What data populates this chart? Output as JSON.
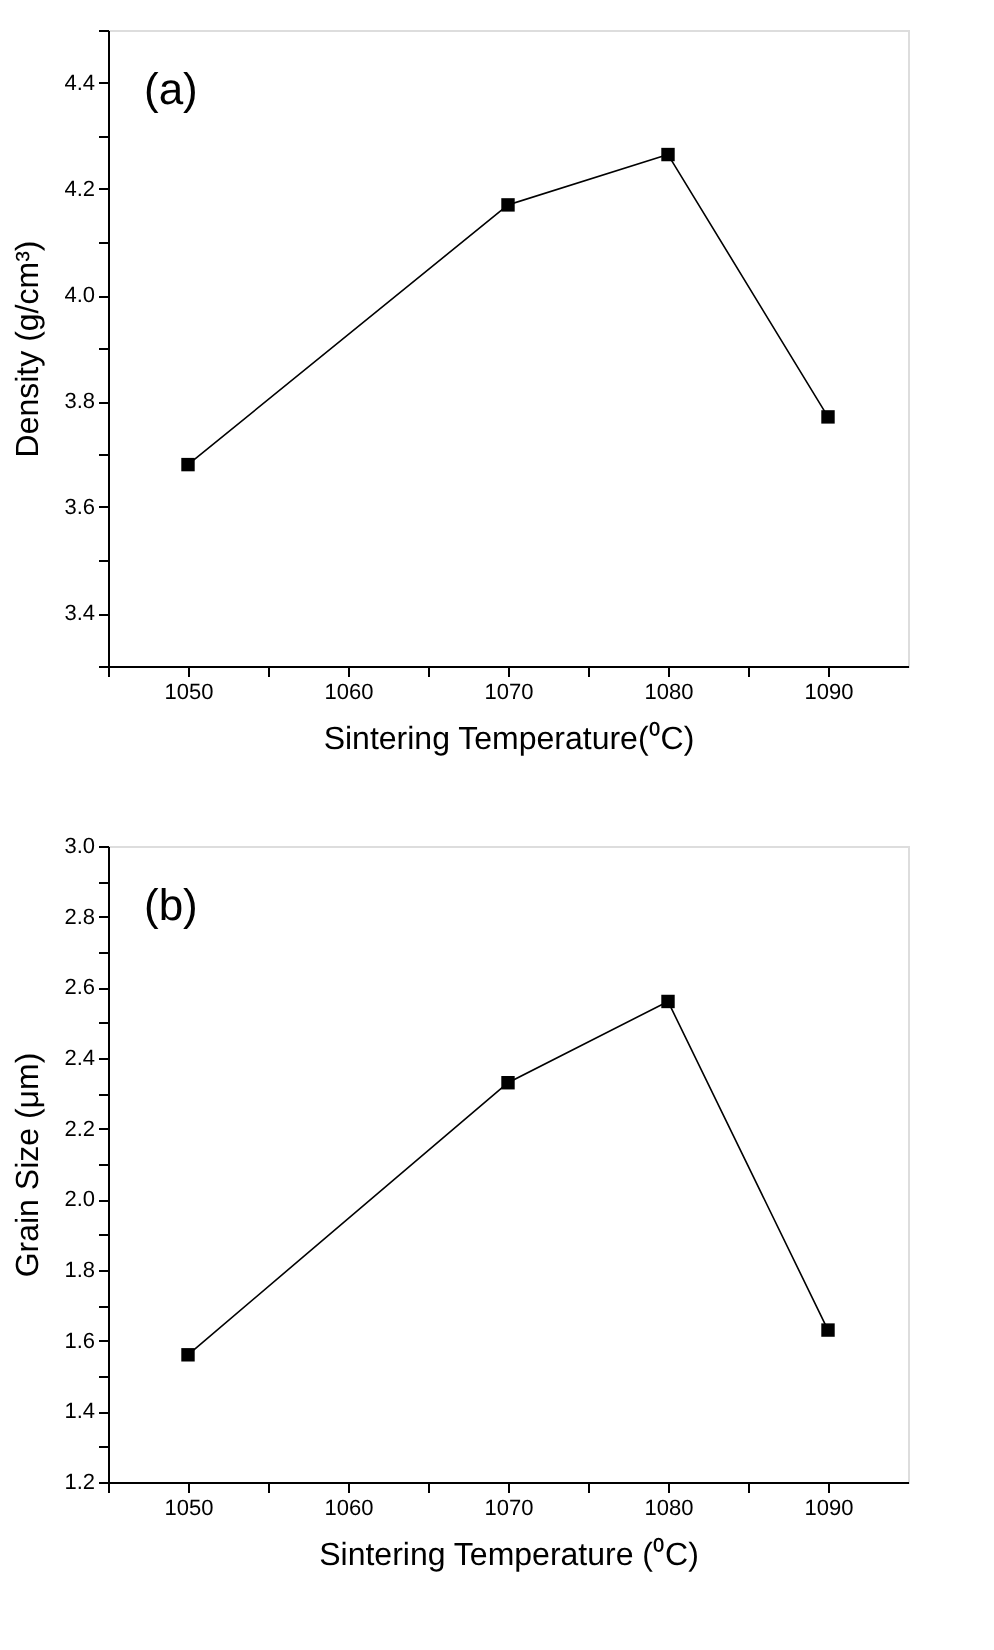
{
  "chart_data": [
    {
      "type": "line",
      "xlabel": "Sintering Temperature(⁰C)",
      "ylabel": "Density (g/cm³)",
      "annotations": [
        "(a)"
      ],
      "x": [
        1050,
        1070,
        1080,
        1090
      ],
      "series": [
        {
          "color": "#000000",
          "values": [
            3.68,
            4.17,
            4.265,
            3.77
          ]
        }
      ],
      "xlim": [
        1045,
        1095
      ],
      "xticks": [
        {
          "value": 1045,
          "label": null
        },
        1050,
        {
          "value": 1055,
          "label": null
        },
        1060,
        {
          "value": 1065,
          "label": null
        },
        1070,
        {
          "value": 1075,
          "label": null
        },
        1080,
        {
          "value": 1085,
          "label": null
        },
        1090
      ],
      "ylim": [
        3.3,
        4.5
      ],
      "yticks": [
        {
          "value": 3.3,
          "label": null
        },
        3.4,
        {
          "value": 3.5,
          "label": null
        },
        3.6,
        {
          "value": 3.7,
          "label": null
        },
        3.8,
        {
          "value": 3.9,
          "label": null
        },
        {
          "value": 4.0,
          "label": "4.0"
        },
        {
          "value": 4.1,
          "label": null
        },
        4.2,
        {
          "value": 4.3,
          "label": null
        },
        4.4,
        {
          "value": 4.5,
          "label": null
        }
      ],
      "grid": false,
      "marker": "square",
      "line_style": "solid"
    },
    {
      "type": "line",
      "xlabel": "Sintering Temperature (⁰C)",
      "ylabel": "Grain Size (μm)",
      "annotations": [
        "(b)"
      ],
      "x": [
        1050,
        1070,
        1080,
        1090
      ],
      "series": [
        {
          "color": "#000000",
          "values": [
            1.56,
            2.33,
            2.56,
            1.63
          ]
        }
      ],
      "xlim": [
        1045,
        1095
      ],
      "xticks": [
        {
          "value": 1045,
          "label": null
        },
        1050,
        {
          "value": 1055,
          "label": null
        },
        1060,
        {
          "value": 1065,
          "label": null
        },
        1070,
        {
          "value": 1075,
          "label": null
        },
        1080,
        {
          "value": 1085,
          "label": null
        },
        1090
      ],
      "ylim": [
        1.2,
        3.0
      ],
      "yticks": [
        1.2,
        {
          "value": 1.3,
          "label": null
        },
        1.4,
        {
          "value": 1.5,
          "label": null
        },
        1.6,
        {
          "value": 1.7,
          "label": null
        },
        1.8,
        {
          "value": 1.9,
          "label": null
        },
        {
          "value": 2.0,
          "label": "2.0"
        },
        {
          "value": 2.1,
          "label": null
        },
        2.2,
        {
          "value": 2.3,
          "label": null
        },
        2.4,
        {
          "value": 2.5,
          "label": null
        },
        2.6,
        {
          "value": 2.7,
          "label": null
        },
        2.8,
        {
          "value": 2.9,
          "label": null
        },
        {
          "value": 3.0,
          "label": "3.0"
        }
      ],
      "grid": false,
      "marker": "square",
      "line_style": "solid"
    }
  ]
}
